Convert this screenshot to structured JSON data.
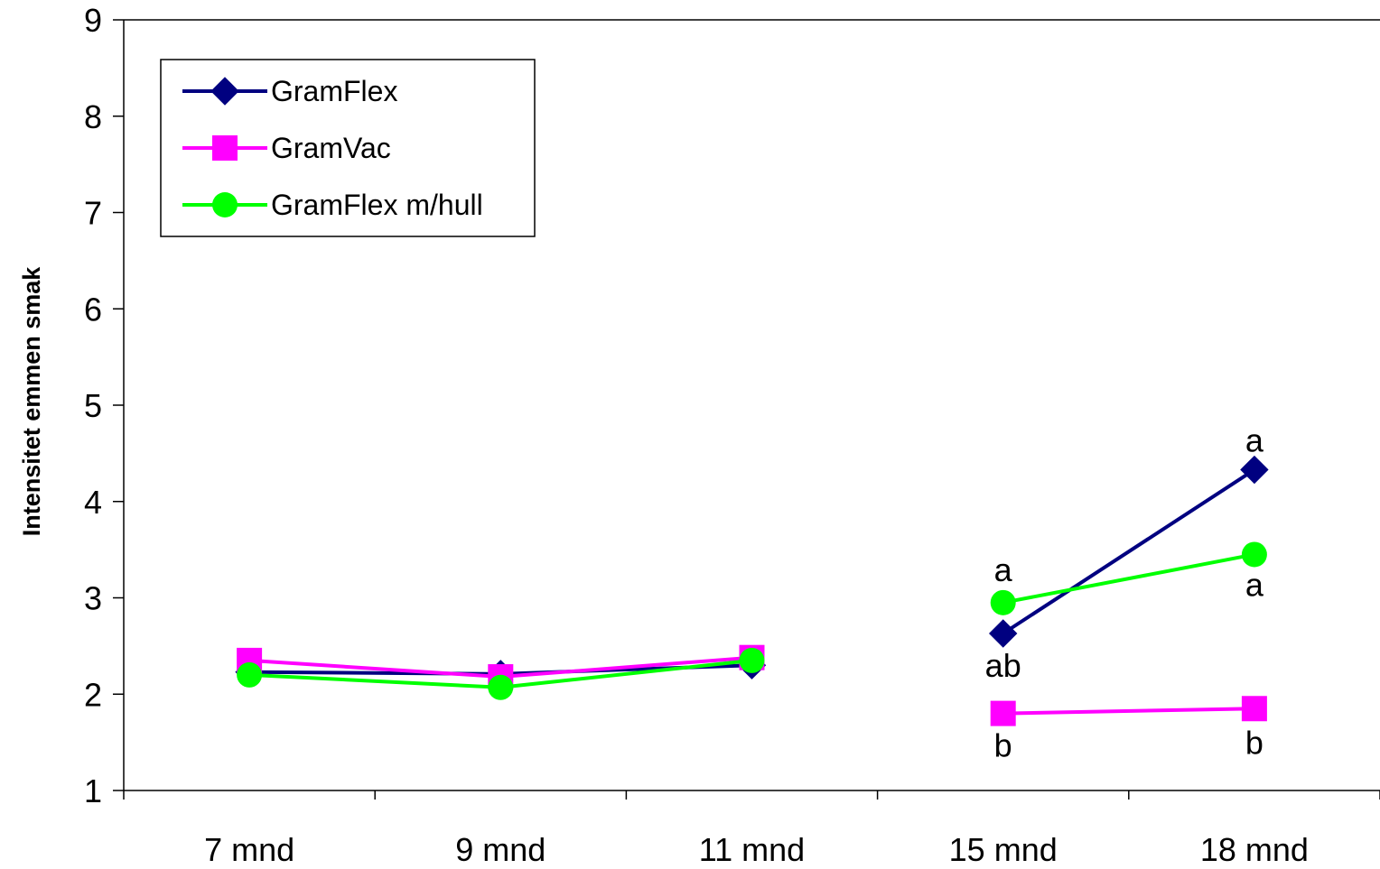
{
  "chart_data": {
    "type": "line",
    "title": "",
    "xlabel": "",
    "ylabel": "Intensitet emmen smak",
    "ylim": [
      1,
      9
    ],
    "yticks": [
      "1",
      "2",
      "3",
      "4",
      "5",
      "6",
      "7",
      "8",
      "9"
    ],
    "categories": [
      "7 mnd",
      "9 mnd",
      "11 mnd",
      "15 mnd",
      "18 mnd"
    ],
    "legend_position": "top-left",
    "grid": false,
    "series": [
      {
        "name": "GramFlex",
        "color": "#000080",
        "marker": "diamond",
        "values": [
          2.23,
          2.21,
          2.3,
          2.63,
          4.33
        ],
        "annotations": [
          null,
          null,
          null,
          "ab",
          "a"
        ]
      },
      {
        "name": "GramVac",
        "color": "#FF00FF",
        "marker": "square",
        "values": [
          2.35,
          2.18,
          2.38,
          1.8,
          1.85
        ],
        "annotations": [
          null,
          null,
          null,
          "b",
          "b"
        ]
      },
      {
        "name": "GramFlex m/hull",
        "color": "#00FF00",
        "marker": "circle",
        "values": [
          2.2,
          2.07,
          2.35,
          2.95,
          3.45
        ],
        "annotations": [
          null,
          null,
          null,
          "a",
          "a"
        ]
      }
    ]
  }
}
